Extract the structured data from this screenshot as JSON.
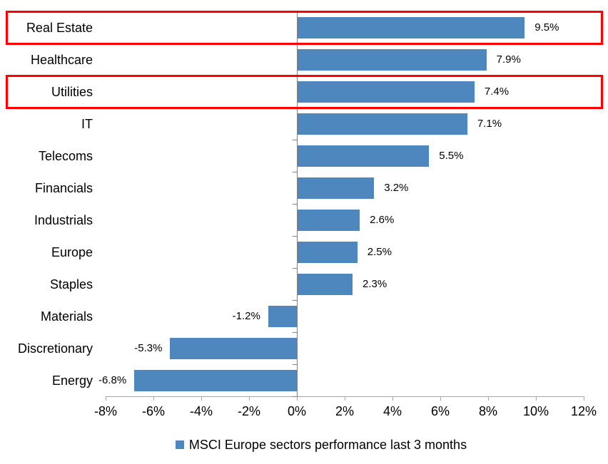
{
  "chart_data": {
    "type": "bar",
    "orientation": "horizontal",
    "title": "",
    "legend": "MSCI Europe sectors performance last 3 months",
    "legend_position": "bottom",
    "grid": false,
    "xlim": [
      -8,
      12
    ],
    "xtick_step": 2,
    "xtick_labels": [
      "-8%",
      "-6%",
      "-4%",
      "-2%",
      "0%",
      "2%",
      "4%",
      "6%",
      "8%",
      "10%",
      "12%"
    ],
    "categories": [
      "Real Estate",
      "Healthcare",
      "Utilities",
      "IT",
      "Telecoms",
      "Financials",
      "Industrials",
      "Europe",
      "Staples",
      "Materials",
      "Discretionary",
      "Energy"
    ],
    "values": [
      9.5,
      7.9,
      7.4,
      7.1,
      5.5,
      3.2,
      2.6,
      2.5,
      2.3,
      -1.2,
      -5.3,
      -6.8
    ],
    "value_labels": [
      "9.5%",
      "7.9%",
      "7.4%",
      "7.1%",
      "5.5%",
      "3.2%",
      "2.6%",
      "2.5%",
      "2.3%",
      "-1.2%",
      "-5.3%",
      "-6.8%"
    ],
    "highlighted_categories": [
      "Real Estate",
      "Utilities"
    ],
    "colors": {
      "bar": "#4E87BD",
      "highlight_box": "#FF0000",
      "value_axis_line": "#A6A6A6",
      "category_axis_line": "#808080",
      "text": "#000000"
    }
  }
}
